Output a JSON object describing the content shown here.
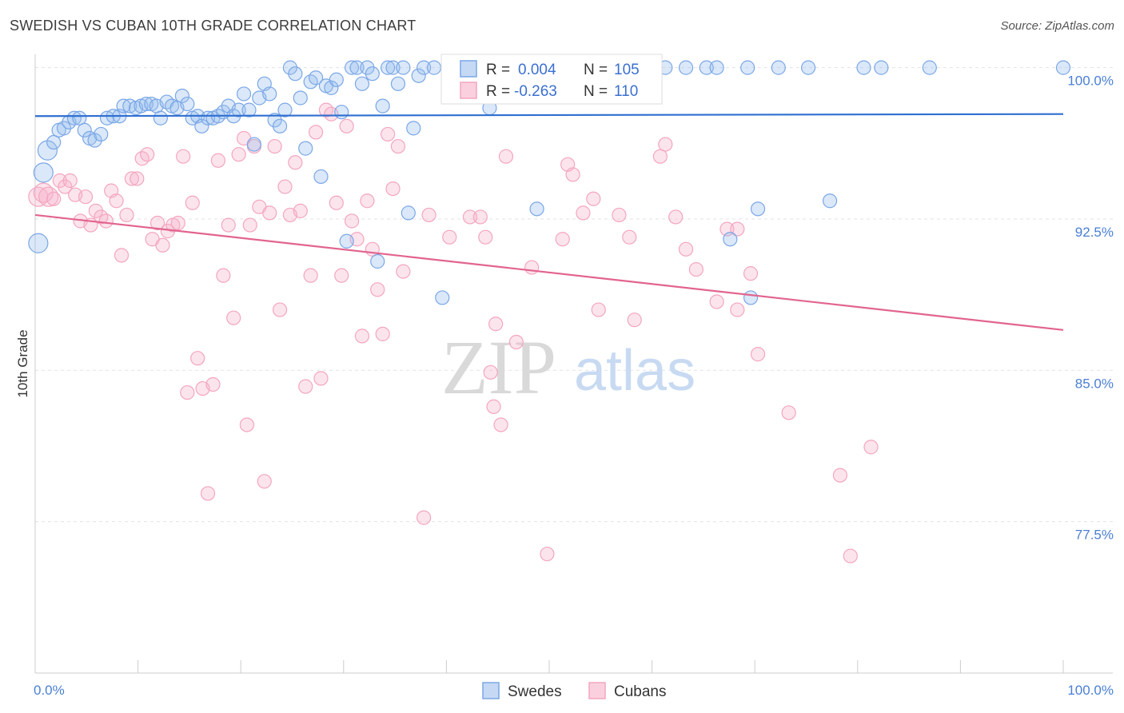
{
  "title": "SWEDISH VS CUBAN 10TH GRADE CORRELATION CHART",
  "source": "Source: ZipAtlas.com",
  "chart_data": {
    "type": "scatter",
    "title": "SWEDISH VS CUBAN 10TH GRADE CORRELATION CHART",
    "xlabel": "",
    "ylabel": "10th Grade",
    "xlim": [
      0,
      100
    ],
    "ylim": [
      70,
      100.5
    ],
    "x_tick_labels": [
      "0.0%",
      "100.0%"
    ],
    "y_ticks": [
      77.5,
      85.0,
      92.5,
      100.0
    ],
    "y_tick_labels": [
      "77.5%",
      "85.0%",
      "92.5%",
      "100.0%"
    ],
    "grid": "horizontal-dashed",
    "legend": {
      "placement": "top-center",
      "rows": [
        {
          "r_label": "R =",
          "r_value": "0.004",
          "n_label": "N =",
          "n_value": "105"
        },
        {
          "r_label": "R =",
          "r_value": "-0.263",
          "n_label": "N =",
          "n_value": "110"
        }
      ]
    },
    "watermark": {
      "zip": "ZIP",
      "atlas": "atlas"
    },
    "series": [
      {
        "name": "Swedes",
        "color": "#7ba7e6",
        "trend": {
          "x": [
            0,
            100
          ],
          "y": [
            97.6,
            97.7
          ],
          "color": "#2f6fd0"
        },
        "points": [
          [
            0.3,
            91.3
          ],
          [
            0.8,
            94.8
          ],
          [
            1.2,
            95.9
          ],
          [
            1.8,
            96.3
          ],
          [
            2.3,
            96.9
          ],
          [
            2.8,
            97.0
          ],
          [
            3.3,
            97.3
          ],
          [
            3.8,
            97.5
          ],
          [
            4.3,
            97.5
          ],
          [
            4.8,
            96.9
          ],
          [
            5.3,
            96.5
          ],
          [
            5.8,
            96.4
          ],
          [
            6.4,
            96.7
          ],
          [
            7.0,
            97.5
          ],
          [
            7.6,
            97.6
          ],
          [
            8.2,
            97.6
          ],
          [
            8.6,
            98.1
          ],
          [
            9.2,
            98.1
          ],
          [
            9.8,
            98.0
          ],
          [
            10.3,
            98.1
          ],
          [
            10.8,
            98.2
          ],
          [
            11.3,
            98.2
          ],
          [
            11.8,
            98.1
          ],
          [
            12.2,
            97.5
          ],
          [
            12.8,
            98.3
          ],
          [
            13.3,
            98.1
          ],
          [
            13.8,
            98.0
          ],
          [
            14.3,
            98.6
          ],
          [
            14.8,
            98.2
          ],
          [
            15.3,
            97.5
          ],
          [
            15.8,
            97.6
          ],
          [
            16.2,
            97.1
          ],
          [
            16.8,
            97.5
          ],
          [
            17.3,
            97.5
          ],
          [
            17.8,
            97.6
          ],
          [
            18.3,
            97.8
          ],
          [
            18.8,
            98.1
          ],
          [
            19.3,
            97.6
          ],
          [
            19.8,
            97.9
          ],
          [
            20.3,
            98.7
          ],
          [
            20.8,
            97.9
          ],
          [
            21.3,
            96.2
          ],
          [
            21.8,
            98.5
          ],
          [
            22.3,
            99.2
          ],
          [
            22.8,
            98.7
          ],
          [
            23.3,
            97.4
          ],
          [
            23.8,
            97.1
          ],
          [
            24.3,
            97.9
          ],
          [
            24.8,
            100.0
          ],
          [
            25.3,
            99.7
          ],
          [
            25.8,
            98.5
          ],
          [
            26.3,
            96.0
          ],
          [
            26.8,
            99.3
          ],
          [
            27.3,
            99.5
          ],
          [
            27.8,
            94.6
          ],
          [
            28.3,
            99.1
          ],
          [
            28.8,
            99.0
          ],
          [
            29.3,
            99.4
          ],
          [
            29.8,
            97.8
          ],
          [
            30.3,
            91.4
          ],
          [
            30.8,
            100.0
          ],
          [
            31.3,
            100.0
          ],
          [
            31.8,
            99.2
          ],
          [
            32.3,
            100.0
          ],
          [
            32.8,
            99.7
          ],
          [
            33.3,
            90.4
          ],
          [
            33.8,
            98.1
          ],
          [
            34.3,
            100.0
          ],
          [
            34.8,
            100.0
          ],
          [
            35.3,
            99.2
          ],
          [
            35.8,
            100.0
          ],
          [
            36.3,
            92.8
          ],
          [
            36.8,
            97.0
          ],
          [
            37.3,
            99.6
          ],
          [
            37.8,
            100.0
          ],
          [
            38.8,
            100.0
          ],
          [
            39.6,
            88.6
          ],
          [
            41.3,
            100.0
          ],
          [
            42.3,
            100.0
          ],
          [
            44.2,
            98.0
          ],
          [
            45.3,
            100.0
          ],
          [
            46.8,
            100.0
          ],
          [
            48.8,
            93.0
          ],
          [
            50.3,
            100.0
          ],
          [
            51.3,
            100.0
          ],
          [
            52.3,
            100.0
          ],
          [
            53.3,
            100.0
          ],
          [
            54.3,
            100.0
          ],
          [
            55.3,
            100.0
          ],
          [
            57.3,
            100.0
          ],
          [
            58.3,
            100.0
          ],
          [
            60.3,
            100.0
          ],
          [
            61.3,
            100.0
          ],
          [
            63.3,
            100.0
          ],
          [
            65.3,
            100.0
          ],
          [
            66.3,
            100.0
          ],
          [
            67.6,
            91.5
          ],
          [
            69.3,
            100.0
          ],
          [
            69.6,
            88.6
          ],
          [
            70.3,
            93.0
          ],
          [
            72.3,
            100.0
          ],
          [
            75.2,
            100.0
          ],
          [
            77.3,
            93.4
          ],
          [
            80.6,
            100.0
          ],
          [
            82.3,
            100.0
          ],
          [
            87.0,
            100.0
          ],
          [
            100.0,
            100.0
          ]
        ]
      },
      {
        "name": "Cubans",
        "color": "#f3a6bf",
        "trend": {
          "x": [
            0,
            100
          ],
          "y": [
            92.7,
            87.0
          ],
          "color": "#e2648f"
        },
        "points": [
          [
            0.3,
            93.6
          ],
          [
            0.8,
            93.8
          ],
          [
            1.3,
            93.6
          ],
          [
            1.8,
            93.5
          ],
          [
            2.4,
            94.4
          ],
          [
            2.9,
            94.1
          ],
          [
            3.4,
            94.4
          ],
          [
            3.9,
            93.7
          ],
          [
            4.4,
            92.4
          ],
          [
            4.9,
            93.6
          ],
          [
            5.4,
            92.2
          ],
          [
            5.9,
            92.9
          ],
          [
            6.4,
            92.6
          ],
          [
            6.9,
            92.4
          ],
          [
            7.4,
            93.9
          ],
          [
            7.9,
            93.4
          ],
          [
            8.4,
            90.7
          ],
          [
            8.9,
            92.7
          ],
          [
            9.4,
            94.5
          ],
          [
            9.9,
            94.5
          ],
          [
            10.4,
            95.5
          ],
          [
            10.9,
            95.7
          ],
          [
            11.4,
            91.5
          ],
          [
            11.9,
            92.3
          ],
          [
            12.4,
            91.2
          ],
          [
            12.9,
            91.9
          ],
          [
            13.4,
            92.2
          ],
          [
            13.9,
            92.3
          ],
          [
            14.4,
            95.6
          ],
          [
            14.8,
            83.9
          ],
          [
            15.3,
            93.3
          ],
          [
            15.8,
            85.6
          ],
          [
            16.3,
            84.1
          ],
          [
            16.8,
            78.9
          ],
          [
            17.3,
            84.3
          ],
          [
            17.8,
            95.4
          ],
          [
            18.3,
            89.7
          ],
          [
            18.8,
            92.2
          ],
          [
            19.3,
            87.6
          ],
          [
            19.8,
            95.7
          ],
          [
            20.3,
            96.5
          ],
          [
            20.6,
            82.3
          ],
          [
            20.9,
            92.2
          ],
          [
            21.3,
            96.1
          ],
          [
            21.8,
            93.1
          ],
          [
            22.3,
            79.5
          ],
          [
            22.8,
            92.8
          ],
          [
            23.3,
            96.1
          ],
          [
            23.8,
            88.0
          ],
          [
            24.3,
            94.1
          ],
          [
            24.8,
            92.7
          ],
          [
            25.3,
            95.3
          ],
          [
            25.8,
            92.9
          ],
          [
            26.3,
            84.2
          ],
          [
            26.8,
            89.7
          ],
          [
            27.3,
            96.8
          ],
          [
            27.8,
            84.6
          ],
          [
            28.3,
            97.9
          ],
          [
            28.8,
            97.7
          ],
          [
            29.3,
            93.3
          ],
          [
            29.8,
            89.7
          ],
          [
            30.3,
            97.1
          ],
          [
            30.8,
            92.4
          ],
          [
            31.3,
            91.5
          ],
          [
            31.8,
            86.7
          ],
          [
            32.3,
            93.4
          ],
          [
            32.8,
            91.0
          ],
          [
            33.3,
            89.0
          ],
          [
            33.8,
            86.8
          ],
          [
            34.3,
            96.7
          ],
          [
            34.8,
            94.0
          ],
          [
            35.3,
            96.1
          ],
          [
            35.8,
            89.9
          ],
          [
            37.8,
            77.7
          ],
          [
            38.3,
            92.7
          ],
          [
            40.3,
            91.6
          ],
          [
            42.3,
            92.6
          ],
          [
            43.3,
            92.6
          ],
          [
            43.8,
            91.6
          ],
          [
            44.3,
            84.9
          ],
          [
            44.6,
            83.2
          ],
          [
            44.8,
            87.3
          ],
          [
            45.3,
            82.3
          ],
          [
            45.8,
            95.6
          ],
          [
            46.8,
            86.4
          ],
          [
            48.3,
            90.1
          ],
          [
            49.8,
            75.9
          ],
          [
            51.3,
            91.5
          ],
          [
            51.8,
            95.2
          ],
          [
            52.3,
            94.7
          ],
          [
            53.3,
            92.8
          ],
          [
            54.3,
            93.5
          ],
          [
            54.8,
            88.0
          ],
          [
            56.8,
            92.7
          ],
          [
            57.8,
            91.6
          ],
          [
            58.3,
            87.5
          ],
          [
            60.8,
            95.6
          ],
          [
            61.3,
            96.2
          ],
          [
            62.3,
            92.6
          ],
          [
            63.3,
            91.0
          ],
          [
            64.3,
            90.0
          ],
          [
            66.3,
            88.4
          ],
          [
            67.3,
            92.0
          ],
          [
            68.3,
            92.0
          ],
          [
            68.3,
            88.0
          ],
          [
            69.6,
            89.8
          ],
          [
            70.3,
            85.8
          ],
          [
            73.3,
            82.9
          ],
          [
            78.3,
            79.8
          ],
          [
            79.3,
            75.8
          ],
          [
            81.3,
            81.2
          ]
        ]
      }
    ]
  }
}
